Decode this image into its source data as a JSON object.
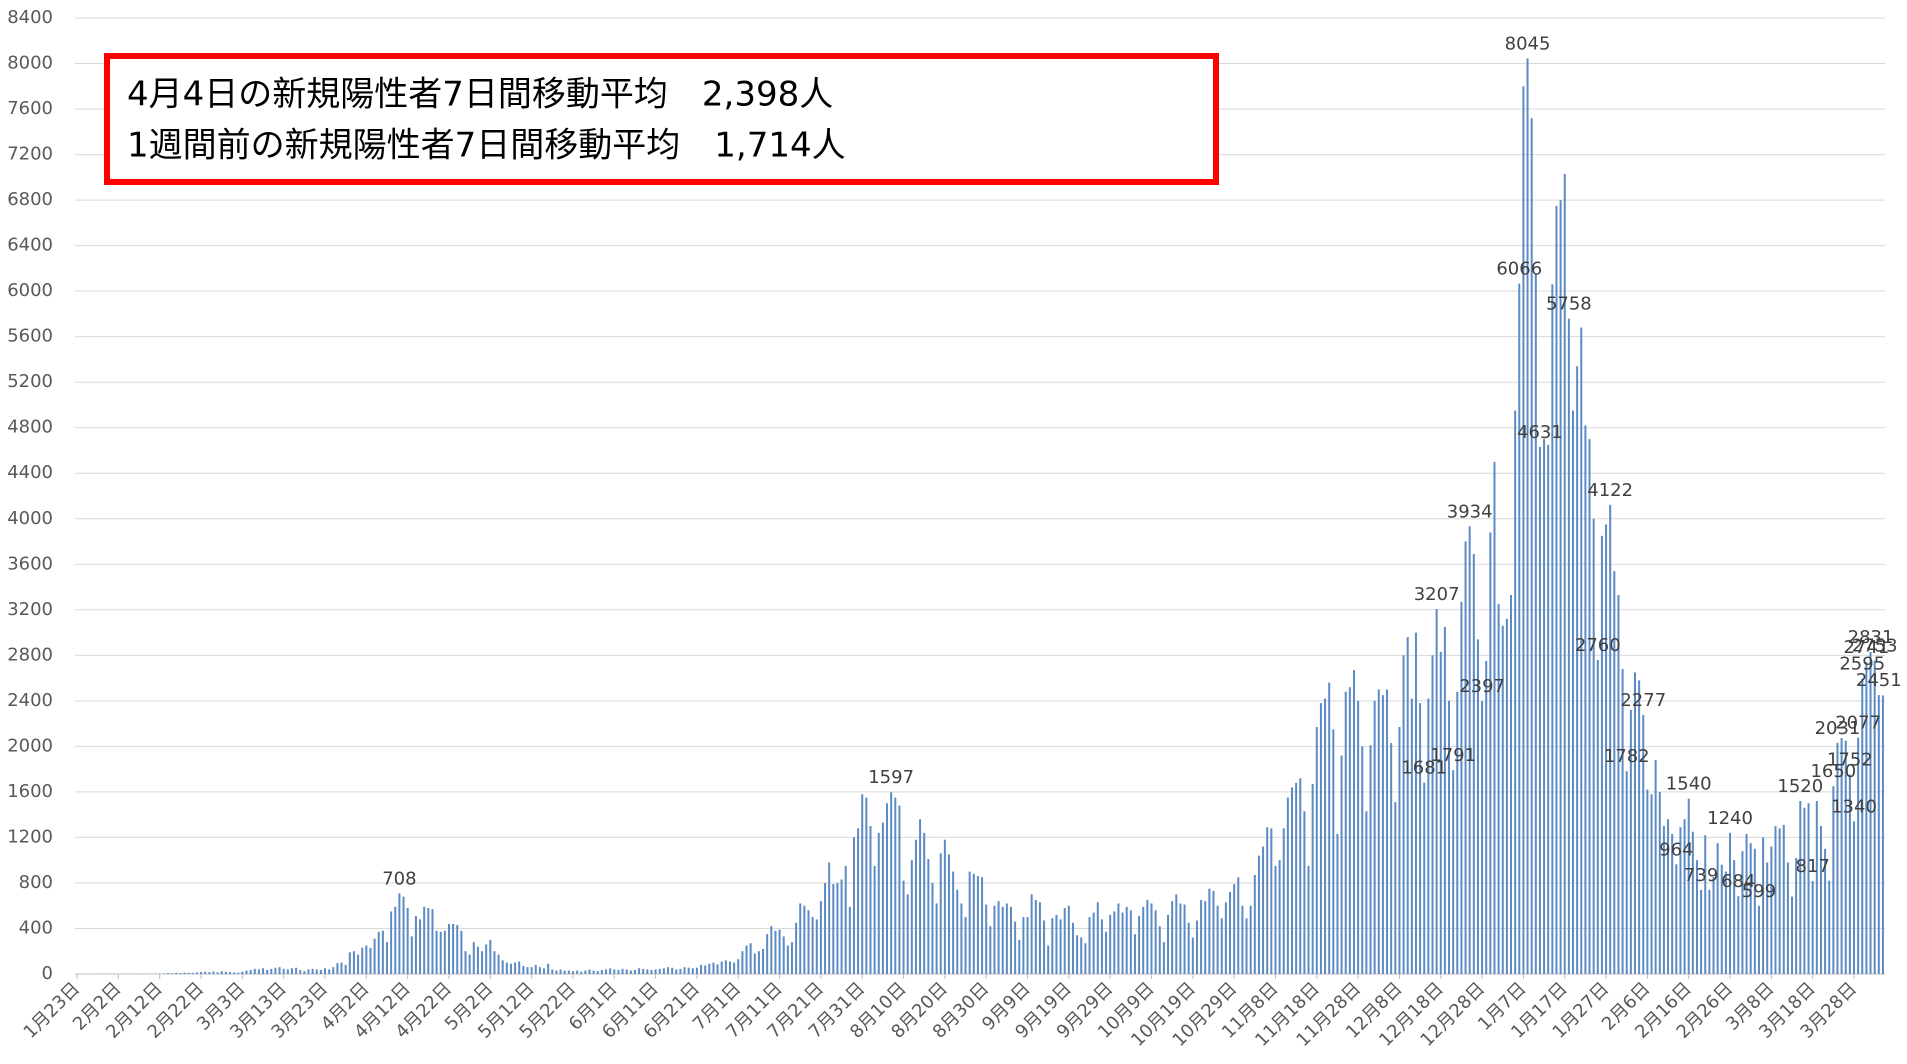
{
  "chart_data": {
    "type": "bar",
    "color": "#5b8ac4",
    "grid": true,
    "annotations": [
      "4月4日の新規陽性者7日間移動平均　2,398人",
      "1週間前の新規陽性者7日間移動平均　1,714人"
    ],
    "ylim": [
      0,
      8400
    ],
    "yticks": [
      0,
      400,
      800,
      1200,
      1600,
      2000,
      2400,
      2800,
      3200,
      3600,
      4000,
      4400,
      4800,
      5200,
      5600,
      6000,
      6400,
      6800,
      7200,
      7600,
      8000,
      8400
    ],
    "categories": [
      "1月23日",
      null,
      null,
      null,
      null,
      null,
      null,
      null,
      null,
      null,
      "2月2日",
      null,
      null,
      null,
      null,
      null,
      null,
      null,
      null,
      null,
      "2月12日",
      null,
      null,
      null,
      null,
      null,
      null,
      null,
      null,
      null,
      "2月22日",
      null,
      null,
      null,
      null,
      null,
      null,
      null,
      null,
      null,
      "3月3日",
      null,
      null,
      null,
      null,
      null,
      null,
      null,
      null,
      null,
      "3月13日",
      null,
      null,
      null,
      null,
      null,
      null,
      null,
      null,
      null,
      "3月23日",
      null,
      null,
      null,
      null,
      null,
      null,
      null,
      null,
      null,
      "4月2日",
      null,
      null,
      null,
      null,
      null,
      null,
      null,
      null,
      null,
      "4月12日",
      null,
      null,
      null,
      null,
      null,
      null,
      null,
      null,
      null,
      "4月22日",
      null,
      null,
      null,
      null,
      null,
      null,
      null,
      null,
      null,
      "5月2日",
      null,
      null,
      null,
      null,
      null,
      null,
      null,
      null,
      null,
      "5月12日",
      null,
      null,
      null,
      null,
      null,
      null,
      null,
      null,
      null,
      "5月22日",
      null,
      null,
      null,
      null,
      null,
      null,
      null,
      null,
      null,
      "6月1日",
      null,
      null,
      null,
      null,
      null,
      null,
      null,
      null,
      null,
      "6月11日",
      null,
      null,
      null,
      null,
      null,
      null,
      null,
      null,
      null,
      "6月21日",
      null,
      null,
      null,
      null,
      null,
      null,
      null,
      null,
      null,
      "7月1日",
      null,
      null,
      null,
      null,
      null,
      null,
      null,
      null,
      null,
      "7月11日",
      null,
      null,
      null,
      null,
      null,
      null,
      null,
      null,
      null,
      "7月21日",
      null,
      null,
      null,
      null,
      null,
      null,
      null,
      null,
      null,
      "7月31日",
      null,
      null,
      null,
      null,
      null,
      null,
      null,
      null,
      null,
      "8月10日",
      null,
      null,
      null,
      null,
      null,
      null,
      null,
      null,
      null,
      "8月20日",
      null,
      null,
      null,
      null,
      null,
      null,
      null,
      null,
      null,
      "8月30日",
      null,
      null,
      null,
      null,
      null,
      null,
      null,
      null,
      null,
      "9月9日",
      null,
      null,
      null,
      null,
      null,
      null,
      null,
      null,
      null,
      "9月19日",
      null,
      null,
      null,
      null,
      null,
      null,
      null,
      null,
      null,
      "9月29日",
      null,
      null,
      null,
      null,
      null,
      null,
      null,
      null,
      null,
      "10月9日",
      null,
      null,
      null,
      null,
      null,
      null,
      null,
      null,
      null,
      "10月19日",
      null,
      null,
      null,
      null,
      null,
      null,
      null,
      null,
      null,
      "10月29日",
      null,
      null,
      null,
      null,
      null,
      null,
      null,
      null,
      null,
      "11月8日",
      null,
      null,
      null,
      null,
      null,
      null,
      null,
      null,
      null,
      "11月18日",
      null,
      null,
      null,
      null,
      null,
      null,
      null,
      null,
      null,
      "11月28日",
      null,
      null,
      null,
      null,
      null,
      null,
      null,
      null,
      null,
      "12月8日",
      null,
      null,
      null,
      null,
      null,
      null,
      null,
      null,
      null,
      "12月18日",
      null,
      null,
      null,
      null,
      null,
      null,
      null,
      null,
      null,
      "12月28日",
      null,
      null,
      null,
      null,
      null,
      null,
      null,
      null,
      null,
      "1月7日",
      null,
      null,
      null,
      null,
      null,
      null,
      null,
      null,
      null,
      "1月17日",
      null,
      null,
      null,
      null,
      null,
      null,
      null,
      null,
      null,
      "1月27日",
      null,
      null,
      null,
      null,
      null,
      null,
      null,
      null,
      null,
      "2月6日",
      null,
      null,
      null,
      null,
      null,
      null,
      null,
      null,
      null,
      "2月16日",
      null,
      null,
      null,
      null,
      null,
      null,
      null,
      null,
      null,
      "2月26日",
      null,
      null,
      null,
      null,
      null,
      null,
      null,
      null,
      null,
      "3月8日",
      null,
      null,
      null,
      null,
      null,
      null,
      null,
      null,
      null,
      "3月18日",
      null,
      null,
      null,
      null,
      null,
      null,
      null,
      null,
      null,
      "3月28日",
      null,
      null,
      null,
      null,
      null,
      null,
      null
    ],
    "values": [
      0,
      0,
      0,
      0,
      1,
      1,
      1,
      1,
      2,
      2,
      0,
      1,
      2,
      1,
      1,
      2,
      3,
      2,
      1,
      2,
      3,
      5,
      8,
      6,
      10,
      8,
      12,
      10,
      9,
      14,
      18,
      20,
      16,
      22,
      15,
      25,
      20,
      18,
      14,
      12,
      20,
      30,
      35,
      45,
      40,
      50,
      35,
      45,
      55,
      60,
      45,
      40,
      50,
      55,
      35,
      25,
      40,
      45,
      40,
      35,
      50,
      40,
      60,
      95,
      100,
      80,
      190,
      200,
      170,
      230,
      250,
      230,
      310,
      370,
      380,
      280,
      550,
      590,
      708,
      680,
      580,
      330,
      510,
      480,
      590,
      580,
      570,
      380,
      370,
      380,
      440,
      440,
      430,
      380,
      200,
      170,
      280,
      240,
      200,
      260,
      300,
      200,
      170,
      120,
      100,
      90,
      100,
      110,
      70,
      60,
      60,
      80,
      60,
      50,
      90,
      40,
      30,
      40,
      30,
      30,
      25,
      30,
      20,
      30,
      40,
      30,
      25,
      35,
      40,
      50,
      40,
      35,
      45,
      40,
      30,
      35,
      50,
      45,
      40,
      35,
      40,
      45,
      50,
      60,
      55,
      40,
      45,
      60,
      55,
      50,
      55,
      80,
      75,
      90,
      100,
      85,
      110,
      120,
      110,
      100,
      130,
      200,
      250,
      270,
      180,
      200,
      220,
      350,
      420,
      380,
      390,
      330,
      250,
      280,
      450,
      620,
      600,
      560,
      500,
      480,
      640,
      800,
      980,
      790,
      800,
      830,
      950,
      590,
      1200,
      1280,
      1580,
      1550,
      1300,
      950,
      1240,
      1330,
      1500,
      1597,
      1550,
      1480,
      820,
      700,
      1000,
      1180,
      1360,
      1240,
      1010,
      800,
      620,
      1060,
      1180,
      1050,
      900,
      740,
      620,
      500,
      900,
      880,
      860,
      850,
      610,
      420,
      600,
      640,
      590,
      620,
      590,
      460,
      300,
      500,
      500,
      700,
      650,
      630,
      470,
      250,
      490,
      520,
      480,
      580,
      600,
      450,
      340,
      320,
      270,
      500,
      540,
      630,
      480,
      370,
      520,
      550,
      620,
      540,
      590,
      560,
      350,
      510,
      590,
      650,
      620,
      560,
      420,
      280,
      520,
      640,
      700,
      620,
      610,
      450,
      320,
      470,
      650,
      640,
      750,
      730,
      600,
      490,
      630,
      720,
      790,
      850,
      600,
      490,
      600,
      870,
      1040,
      1120,
      1290,
      1280,
      950,
      1000,
      1280,
      1550,
      1640,
      1680,
      1720,
      1430,
      950,
      1670,
      2170,
      2380,
      2420,
      2560,
      2150,
      1230,
      1920,
      2480,
      2520,
      2670,
      2400,
      2000,
      1430,
      2010,
      2400,
      2500,
      2450,
      2500,
      2030,
      1510,
      2170,
      2800,
      2960,
      2420,
      3000,
      2380,
      1681,
      2420,
      2800,
      3207,
      2830,
      3050,
      2400,
      1791,
      2480,
      3270,
      3800,
      3934,
      3690,
      2940,
      2397,
      2750,
      3880,
      4500,
      3250,
      3060,
      3120,
      3330,
      4950,
      6066,
      7800,
      8045,
      7520,
      6150,
      4631,
      4700,
      4650,
      6060,
      6750,
      6800,
      7030,
      5758,
      4950,
      5340,
      5680,
      4820,
      4700,
      4000,
      2760,
      3850,
      3950,
      4122,
      3540,
      3330,
      2680,
      1782,
      2320,
      2650,
      2580,
      2277,
      1620,
      1580,
      1880,
      1600,
      1300,
      1360,
      1230,
      964,
      1290,
      1360,
      1540,
      1250,
      1000,
      739,
      1220,
      740,
      850,
      1150,
      960,
      900,
      1240,
      1000,
      684,
      1080,
      1230,
      1150,
      1100,
      599,
      1200,
      980,
      1120,
      1300,
      1280,
      1310,
      980,
      680,
      1020,
      1520,
      1460,
      1500,
      817,
      1520,
      1300,
      1100,
      820,
      1650,
      2031,
      2073,
      2050,
      1752,
      1340,
      2077,
      2595,
      2741,
      2831,
      2753,
      2451,
      2448
    ],
    "labeled": [
      78,
      197,
      326,
      329,
      333,
      337,
      340,
      349,
      351,
      354,
      361,
      368,
      371,
      375,
      379,
      387,
      390,
      393,
      400,
      402,
      407,
      417,
      420,
      425,
      426,
      429,
      430,
      431,
      432,
      433,
      434,
      435,
      436
    ]
  }
}
